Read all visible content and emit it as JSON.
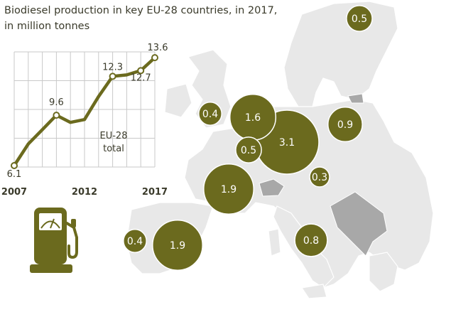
{
  "title_line1": "Biodiesel production in key EU-28 countries, in 2017,",
  "title_line2": "in million tonnes",
  "icon": "fuel-pump-icon",
  "colors": {
    "bubble": "#6b6a1e",
    "line": "#6b6a1e",
    "land": "#e8e8e8",
    "border": "#ffffff",
    "non_eu": "#a8a8a8",
    "grid": "#c9c9c9",
    "text": "#3a3a2a"
  },
  "chart_data": [
    {
      "type": "line",
      "x": [
        2007,
        2008,
        2009,
        2010,
        2011,
        2012,
        2013,
        2014,
        2015,
        2016,
        2017
      ],
      "series": [
        {
          "name": "EU-28 total",
          "values": [
            6.1,
            7.6,
            8.6,
            9.6,
            9.1,
            9.3,
            10.9,
            12.3,
            12.4,
            12.7,
            13.6
          ]
        }
      ],
      "point_labels": [
        {
          "x": 2007,
          "label": "6.1"
        },
        {
          "x": 2010,
          "label": "9.6"
        },
        {
          "x": 2014,
          "label": "12.3"
        },
        {
          "x": 2016,
          "label": "12.7"
        },
        {
          "x": 2017,
          "label": "13.6"
        }
      ],
      "xtick_labels": [
        "2007",
        "2012",
        "2017"
      ],
      "xlim": [
        2007,
        2017
      ],
      "ylim": [
        6,
        14
      ],
      "annotation": [
        "EU-28",
        "total"
      ],
      "grid": true
    },
    {
      "type": "bubble-map",
      "values": [
        {
          "label": "3.1",
          "value": 3.1
        },
        {
          "label": "1.9",
          "value": 1.9
        },
        {
          "label": "1.9",
          "value": 1.9
        },
        {
          "label": "1.6",
          "value": 1.6
        },
        {
          "label": "0.9",
          "value": 0.9
        },
        {
          "label": "0.8",
          "value": 0.8
        },
        {
          "label": "0.5",
          "value": 0.5
        },
        {
          "label": "0.5",
          "value": 0.5
        },
        {
          "label": "0.4",
          "value": 0.4
        },
        {
          "label": "0.4",
          "value": 0.4
        },
        {
          "label": "0.3",
          "value": 0.3
        }
      ]
    }
  ]
}
